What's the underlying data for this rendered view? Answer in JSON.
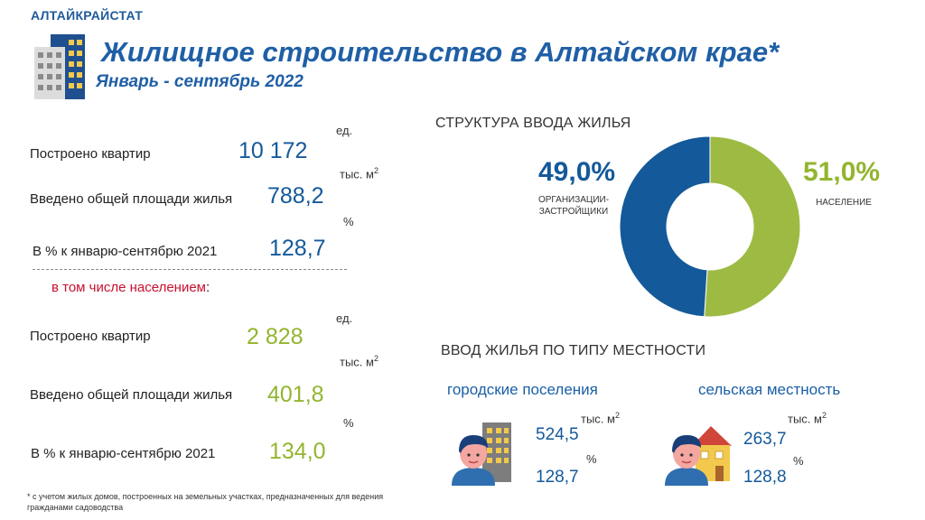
{
  "header": {
    "org": "АЛТАЙКРАЙСТАТ",
    "title": "Жилищное строительство в Алтайском крае*",
    "subtitle": "Январь - сентябрь 2022"
  },
  "units": {
    "ed": "ед.",
    "thous": "тыс. м",
    "sq": "2",
    "pct": "%"
  },
  "total": {
    "apartments_label": "Построено квартир",
    "apartments_value": "10 172",
    "area_label": "Введено общей площади жилья",
    "area_value": "788,2",
    "pct_label": "В % к январю-сентябрю 2021",
    "pct_value": "128,7"
  },
  "including_label": "в том числе населением",
  "including_colon": ":",
  "population": {
    "apartments_label": "Построено квартир",
    "apartments_value": "2 828",
    "area_label": "Введено общей площади жилья",
    "area_value": "401,8",
    "pct_label": "В % к январю-сентябрю 2021",
    "pct_value": "134,0"
  },
  "structure": {
    "heading": "СТРУКТУРА ВВОДА ЖИЛЬЯ",
    "left_pct": "49,0%",
    "left_label_1": "ОРГАНИЗАЦИИ-",
    "left_label_2": "ЗАСТРОЙЩИКИ",
    "right_pct": "51,0%",
    "right_label": "НАСЕЛЕНИЕ"
  },
  "chart_data": {
    "type": "pie",
    "title": "СТРУКТУРА ВВОДА ЖИЛЬЯ",
    "categories": [
      "ОРГАНИЗАЦИИ-ЗАСТРОЙЩИКИ",
      "НАСЕЛЕНИЕ"
    ],
    "values": [
      49.0,
      51.0
    ],
    "colors": [
      "#14599a",
      "#9dbb43"
    ],
    "donut": true,
    "legend": "none"
  },
  "locality": {
    "heading": "ВВОД ЖИЛЬЯ ПО ТИПУ МЕСТНОСТИ",
    "urban": {
      "label": "городские поселения",
      "area": "524,5",
      "pct": "128,7"
    },
    "rural": {
      "label": "сельская местность",
      "area": "263,7",
      "pct": "128,8"
    }
  },
  "footnote": "* с учетом жилых домов, построенных на земельных участках, предназначенных для ведения гражданами садоводства"
}
